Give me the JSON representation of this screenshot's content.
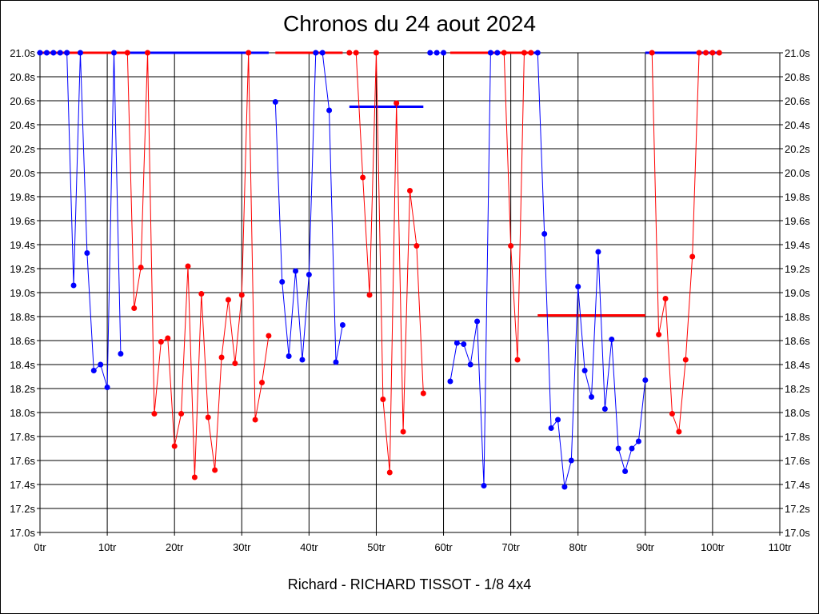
{
  "chart_data": {
    "type": "line",
    "title": "Chronos du 24 aout 2024",
    "subtitle": "Richard - RICHARD TISSOT - 1/8 4x4",
    "xlabel": "",
    "ylabel": "",
    "xlim": [
      0,
      110
    ],
    "ylim": [
      17.0,
      21.0
    ],
    "x_ticks": [
      0,
      10,
      20,
      30,
      40,
      50,
      60,
      70,
      80,
      90,
      100,
      110
    ],
    "x_tick_labels": [
      "0tr",
      "10tr",
      "20tr",
      "30tr",
      "40tr",
      "50tr",
      "60tr",
      "70tr",
      "80tr",
      "90tr",
      "100tr",
      "110tr"
    ],
    "y_ticks": [
      17.0,
      17.2,
      17.4,
      17.6,
      17.8,
      18.0,
      18.2,
      18.4,
      18.6,
      18.8,
      19.0,
      19.2,
      19.4,
      19.6,
      19.8,
      20.0,
      20.2,
      20.4,
      20.6,
      20.8,
      21.0
    ],
    "y_tick_labels": [
      "17.0s",
      "17.2s",
      "17.4s",
      "17.6s",
      "17.8s",
      "18.0s",
      "18.2s",
      "18.4s",
      "18.6s",
      "18.8s",
      "19.0s",
      "19.2s",
      "19.4s",
      "19.6s",
      "19.8s",
      "20.0s",
      "20.2s",
      "20.4s",
      "20.6s",
      "20.8s",
      "21.0s"
    ],
    "grid": true,
    "colors": {
      "blue": "#0000ff",
      "red": "#ff0000",
      "axes": "#000000",
      "grid": "#000000"
    },
    "series": [
      {
        "color": "blue",
        "x": [
          0,
          1,
          2,
          3,
          4
        ],
        "y": [
          21.0,
          21.0,
          21.0,
          21.0,
          21.0
        ]
      },
      {
        "color": "blue",
        "x": [
          4,
          5,
          6,
          7,
          8,
          9,
          10,
          11,
          12
        ],
        "y": [
          21.0,
          19.06,
          21.0,
          19.33,
          18.35,
          18.4,
          18.21,
          21.0,
          18.49
        ]
      },
      {
        "color": "red",
        "x": [
          13,
          14,
          15,
          16,
          17,
          18,
          19,
          20,
          21,
          22,
          23,
          24,
          25,
          26,
          27,
          28,
          29,
          30,
          31,
          32,
          33,
          34
        ],
        "y": [
          21.0,
          18.87,
          19.21,
          21.0,
          17.99,
          18.59,
          18.62,
          17.72,
          17.99,
          19.22,
          17.46,
          18.99,
          17.96,
          17.52,
          18.46,
          18.94,
          18.41,
          18.98,
          21.0,
          17.94,
          18.25,
          18.64
        ]
      },
      {
        "color": "blue",
        "x": [
          35,
          36,
          37,
          38,
          39,
          40,
          41,
          42,
          43,
          44,
          45
        ],
        "y": [
          20.59,
          19.09,
          18.47,
          19.18,
          18.44,
          19.15,
          21.0,
          21.0,
          20.52,
          18.42,
          18.73
        ]
      },
      {
        "color": "red",
        "x": [
          46,
          47,
          48,
          49,
          50,
          51,
          52,
          53,
          54,
          55,
          56,
          57
        ],
        "y": [
          21.0,
          21.0,
          19.96,
          18.98,
          21.0,
          18.11,
          17.5,
          20.58,
          17.84,
          19.85,
          19.39,
          18.16
        ]
      },
      {
        "color": "blue",
        "x": [
          58,
          59,
          60
        ],
        "y": [
          21.0,
          21.0,
          21.0
        ]
      },
      {
        "color": "blue",
        "x": [
          61,
          62,
          63,
          64,
          65,
          66,
          67,
          68
        ],
        "y": [
          18.26,
          18.58,
          18.57,
          18.4,
          18.76,
          17.39,
          21.0,
          21.0
        ]
      },
      {
        "color": "red",
        "x": [
          69,
          70,
          71,
          72,
          73
        ],
        "y": [
          21.0,
          19.39,
          18.44,
          21.0,
          21.0
        ]
      },
      {
        "color": "blue",
        "x": [
          74,
          75,
          76,
          77,
          78,
          79,
          80,
          81,
          82,
          83,
          84,
          85,
          86,
          87,
          88,
          89,
          90
        ],
        "y": [
          21.0,
          19.49,
          17.87,
          17.94,
          17.38,
          17.6,
          19.05,
          18.35,
          18.13,
          19.34,
          18.03,
          18.61,
          17.7,
          17.51,
          17.7,
          17.76,
          18.27
        ]
      },
      {
        "color": "red",
        "x": [
          91,
          92,
          93,
          94,
          95,
          96,
          97,
          98,
          99,
          100,
          101
        ],
        "y": [
          21.0,
          18.65,
          18.95,
          17.99,
          17.84,
          18.44,
          19.3,
          21.0,
          21.0,
          21.0,
          21.0
        ]
      }
    ],
    "horizontal_lines": [
      {
        "color": "red",
        "x": [
          0,
          15
        ],
        "y": 21.0
      },
      {
        "color": "blue",
        "x": [
          13,
          34
        ],
        "y": 21.0
      },
      {
        "color": "red",
        "x": [
          35,
          45
        ],
        "y": 21.0
      },
      {
        "color": "blue",
        "x": [
          46,
          57
        ],
        "y": 20.55
      },
      {
        "color": "red",
        "x": [
          61,
          73
        ],
        "y": 21.0
      },
      {
        "color": "blue",
        "x": [
          73,
          74
        ],
        "y": 21.0
      },
      {
        "color": "red",
        "x": [
          74,
          90
        ],
        "y": 18.81
      },
      {
        "color": "blue",
        "x": [
          90,
          101
        ],
        "y": 21.0
      }
    ]
  }
}
